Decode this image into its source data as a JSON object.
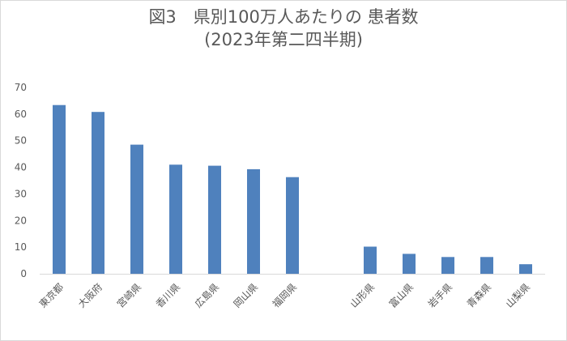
{
  "chart_data": {
    "type": "bar",
    "title": "図3　県別100万人あたりの 患者数",
    "subtitle": "(2023年第二四半期)",
    "xlabel": "",
    "ylabel": "",
    "ylim": [
      0,
      70
    ],
    "yticks": [
      0,
      10,
      20,
      30,
      40,
      50,
      60,
      70
    ],
    "grid": false,
    "legend": "none",
    "bar_color": "#4f81bd",
    "categories": [
      "東京都",
      "大阪府",
      "宮崎県",
      "香川県",
      "広島県",
      "岡山県",
      "福岡県",
      "",
      "山形県",
      "富山県",
      "岩手県",
      "青森県",
      "山梨県"
    ],
    "values": [
      63.4,
      60.8,
      48.5,
      41.0,
      40.6,
      39.3,
      36.3,
      null,
      10.2,
      7.5,
      6.3,
      6.3,
      3.6
    ]
  }
}
